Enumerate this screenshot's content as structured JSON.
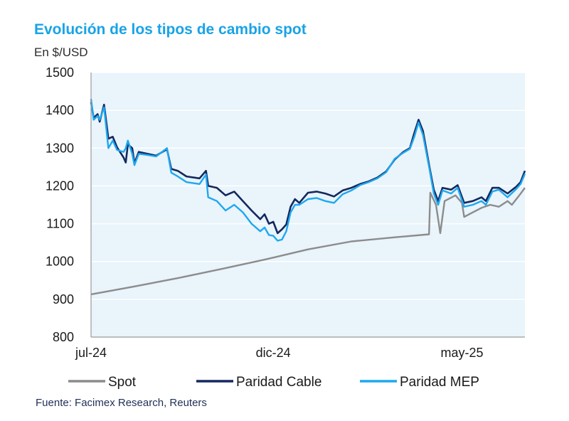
{
  "chart_data": {
    "type": "line",
    "title": "Evolución de los tipos de cambio spot",
    "subtitle": "En $/USD",
    "source": "Fuente: Facimex Research, Reuters",
    "ylim": [
      800,
      1500
    ],
    "y_ticks": [
      800,
      900,
      1000,
      1100,
      1200,
      1300,
      1400,
      1500
    ],
    "x_tick_labels": [
      {
        "label": "jul-24",
        "x": 0
      },
      {
        "label": "dic-24",
        "x": 0.42
      },
      {
        "label": "may-25",
        "x": 0.855
      }
    ],
    "colors": {
      "spot": "#8c8c8c",
      "cable": "#14285e",
      "mep": "#1ea8f0",
      "plot_bg": "#e9f4fb",
      "title": "#19a3e6"
    },
    "series": [
      {
        "key": "spot",
        "name": "Spot",
        "points": [
          [
            0,
            913
          ],
          [
            0.1,
            934
          ],
          [
            0.2,
            956
          ],
          [
            0.3,
            980
          ],
          [
            0.4,
            1005
          ],
          [
            0.5,
            1032
          ],
          [
            0.6,
            1053
          ],
          [
            0.7,
            1064
          ],
          [
            0.779,
            1072
          ],
          [
            0.782,
            1182
          ],
          [
            0.795,
            1150
          ],
          [
            0.805,
            1075
          ],
          [
            0.815,
            1160
          ],
          [
            0.84,
            1175
          ],
          [
            0.855,
            1155
          ],
          [
            0.86,
            1118
          ],
          [
            0.88,
            1130
          ],
          [
            0.9,
            1142
          ],
          [
            0.92,
            1150
          ],
          [
            0.94,
            1145
          ],
          [
            0.96,
            1160
          ],
          [
            0.97,
            1150
          ],
          [
            0.985,
            1172
          ],
          [
            1,
            1195
          ]
        ]
      },
      {
        "key": "cable",
        "name": "Paridad Cable",
        "points": [
          [
            0,
            1422
          ],
          [
            0.006,
            1380
          ],
          [
            0.015,
            1390
          ],
          [
            0.02,
            1370
          ],
          [
            0.03,
            1415
          ],
          [
            0.04,
            1325
          ],
          [
            0.05,
            1330
          ],
          [
            0.06,
            1302
          ],
          [
            0.075,
            1275
          ],
          [
            0.08,
            1262
          ],
          [
            0.085,
            1310
          ],
          [
            0.095,
            1300
          ],
          [
            0.1,
            1260
          ],
          [
            0.11,
            1290
          ],
          [
            0.13,
            1285
          ],
          [
            0.15,
            1280
          ],
          [
            0.175,
            1297
          ],
          [
            0.185,
            1245
          ],
          [
            0.2,
            1240
          ],
          [
            0.22,
            1225
          ],
          [
            0.25,
            1220
          ],
          [
            0.265,
            1240
          ],
          [
            0.27,
            1200
          ],
          [
            0.29,
            1195
          ],
          [
            0.31,
            1175
          ],
          [
            0.33,
            1185
          ],
          [
            0.35,
            1160
          ],
          [
            0.37,
            1135
          ],
          [
            0.39,
            1112
          ],
          [
            0.4,
            1125
          ],
          [
            0.41,
            1100
          ],
          [
            0.42,
            1105
          ],
          [
            0.43,
            1075
          ],
          [
            0.44,
            1085
          ],
          [
            0.45,
            1098
          ],
          [
            0.46,
            1145
          ],
          [
            0.47,
            1165
          ],
          [
            0.48,
            1155
          ],
          [
            0.5,
            1182
          ],
          [
            0.52,
            1185
          ],
          [
            0.54,
            1180
          ],
          [
            0.56,
            1172
          ],
          [
            0.58,
            1188
          ],
          [
            0.6,
            1195
          ],
          [
            0.62,
            1205
          ],
          [
            0.64,
            1212
          ],
          [
            0.66,
            1222
          ],
          [
            0.68,
            1238
          ],
          [
            0.7,
            1270
          ],
          [
            0.72,
            1290
          ],
          [
            0.735,
            1300
          ],
          [
            0.745,
            1340
          ],
          [
            0.755,
            1375
          ],
          [
            0.765,
            1345
          ],
          [
            0.78,
            1250
          ],
          [
            0.79,
            1190
          ],
          [
            0.8,
            1160
          ],
          [
            0.81,
            1195
          ],
          [
            0.83,
            1190
          ],
          [
            0.845,
            1202
          ],
          [
            0.86,
            1155
          ],
          [
            0.88,
            1160
          ],
          [
            0.9,
            1170
          ],
          [
            0.91,
            1160
          ],
          [
            0.925,
            1195
          ],
          [
            0.94,
            1195
          ],
          [
            0.96,
            1180
          ],
          [
            0.98,
            1198
          ],
          [
            0.99,
            1210
          ],
          [
            1,
            1240
          ]
        ]
      },
      {
        "key": "mep",
        "name": "Paridad MEP",
        "points": [
          [
            0,
            1430
          ],
          [
            0.006,
            1375
          ],
          [
            0.015,
            1385
          ],
          [
            0.02,
            1375
          ],
          [
            0.03,
            1408
          ],
          [
            0.04,
            1300
          ],
          [
            0.05,
            1320
          ],
          [
            0.06,
            1295
          ],
          [
            0.075,
            1290
          ],
          [
            0.08,
            1300
          ],
          [
            0.085,
            1320
          ],
          [
            0.095,
            1285
          ],
          [
            0.1,
            1255
          ],
          [
            0.11,
            1285
          ],
          [
            0.13,
            1282
          ],
          [
            0.15,
            1278
          ],
          [
            0.175,
            1300
          ],
          [
            0.185,
            1235
          ],
          [
            0.2,
            1225
          ],
          [
            0.22,
            1210
          ],
          [
            0.25,
            1205
          ],
          [
            0.265,
            1230
          ],
          [
            0.27,
            1170
          ],
          [
            0.29,
            1160
          ],
          [
            0.31,
            1135
          ],
          [
            0.33,
            1150
          ],
          [
            0.35,
            1130
          ],
          [
            0.37,
            1100
          ],
          [
            0.39,
            1080
          ],
          [
            0.4,
            1090
          ],
          [
            0.41,
            1070
          ],
          [
            0.42,
            1068
          ],
          [
            0.43,
            1055
          ],
          [
            0.44,
            1058
          ],
          [
            0.45,
            1080
          ],
          [
            0.46,
            1130
          ],
          [
            0.47,
            1150
          ],
          [
            0.48,
            1150
          ],
          [
            0.5,
            1165
          ],
          [
            0.52,
            1168
          ],
          [
            0.54,
            1160
          ],
          [
            0.56,
            1155
          ],
          [
            0.58,
            1178
          ],
          [
            0.6,
            1188
          ],
          [
            0.62,
            1202
          ],
          [
            0.64,
            1210
          ],
          [
            0.66,
            1220
          ],
          [
            0.68,
            1236
          ],
          [
            0.7,
            1272
          ],
          [
            0.72,
            1288
          ],
          [
            0.735,
            1298
          ],
          [
            0.745,
            1330
          ],
          [
            0.755,
            1368
          ],
          [
            0.765,
            1335
          ],
          [
            0.78,
            1245
          ],
          [
            0.79,
            1180
          ],
          [
            0.8,
            1150
          ],
          [
            0.81,
            1188
          ],
          [
            0.83,
            1180
          ],
          [
            0.845,
            1195
          ],
          [
            0.86,
            1145
          ],
          [
            0.88,
            1150
          ],
          [
            0.9,
            1160
          ],
          [
            0.91,
            1150
          ],
          [
            0.925,
            1185
          ],
          [
            0.94,
            1190
          ],
          [
            0.96,
            1170
          ],
          [
            0.98,
            1192
          ],
          [
            0.99,
            1205
          ],
          [
            1,
            1232
          ]
        ]
      }
    ],
    "legend": [
      {
        "key": "spot",
        "label": "Spot"
      },
      {
        "key": "cable",
        "label": "Paridad Cable"
      },
      {
        "key": "mep",
        "label": "Paridad MEP"
      }
    ]
  }
}
